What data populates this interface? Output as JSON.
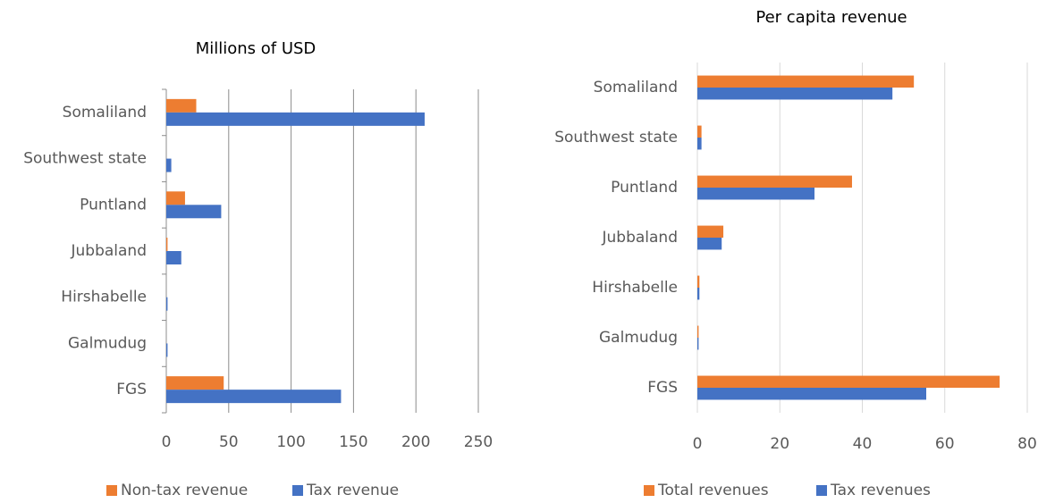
{
  "chart_data": [
    {
      "type": "bar",
      "orientation": "horizontal",
      "title": "Millions of USD",
      "categories": [
        "Somaliland",
        "Southwest state",
        "Puntland",
        "Jubbaland",
        "Hirshabelle",
        "Galmudug",
        "FGS"
      ],
      "series": [
        {
          "name": "Non-tax revenue",
          "color": "#ED7D31",
          "values": [
            24,
            0,
            15,
            1,
            0,
            0,
            46
          ]
        },
        {
          "name": "Tax revenue",
          "color": "#4472C4",
          "values": [
            207,
            4,
            44,
            12,
            1,
            1,
            140
          ]
        }
      ],
      "xlim": [
        0,
        250
      ],
      "xticks": [
        0,
        50,
        100,
        150,
        200,
        250
      ],
      "grid": true,
      "grid_color": "#8c8c8c",
      "legend": "bottom"
    },
    {
      "type": "bar",
      "orientation": "horizontal",
      "title": "Per capita revenue",
      "categories": [
        "Somaliland",
        "Southwest state",
        "Puntland",
        "Jubbaland",
        "Hirshabelle",
        "Galmudug",
        "FGS"
      ],
      "series": [
        {
          "name": "Total revenues",
          "color": "#ED7D31",
          "values": [
            52.5,
            1,
            37.5,
            6.3,
            0.5,
            0.3,
            73.3
          ]
        },
        {
          "name": "Tax revenues",
          "color": "#4472C4",
          "values": [
            47.3,
            1,
            28.4,
            5.9,
            0.5,
            0.3,
            55.5
          ]
        }
      ],
      "xlim": [
        0,
        80
      ],
      "xticks": [
        0,
        20,
        40,
        60,
        80
      ],
      "grid": true,
      "grid_color": "#d9d9d9",
      "legend": "bottom"
    }
  ]
}
